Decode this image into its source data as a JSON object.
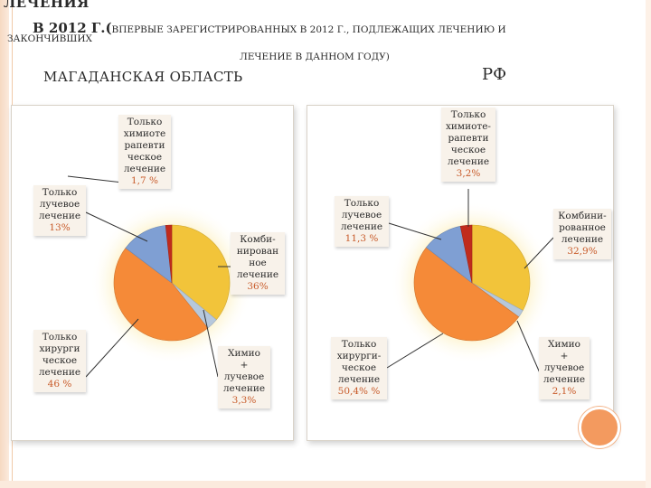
{
  "title": {
    "top": "ЛЕЧЕНИЯ",
    "year_prefix": "В 2012 Г.(",
    "line2_rest": "ВПЕРВЫЕ ЗАРЕГИСТРИРОВАННЫХ В 2012 Г., ПОДЛЕЖАЩИХ ЛЕЧЕНИЮ И",
    "line3": "ЗАКОНЧИВШИХ",
    "line4": "ЛЕЧЕНИЕ В ДАННОМ ГОДУ)"
  },
  "regions": {
    "left": "МАГАДАНСКАЯ ОБЛАСТЬ",
    "right": "РФ"
  },
  "colors": {
    "combined": "#f2c43a",
    "surgery": "#f58a38",
    "chemo_radiation": "#b6c8dc",
    "radiation": "#7f9fd3",
    "chemo": "#c02b1c"
  },
  "chart_data": [
    {
      "type": "pie",
      "title": "МАГАДАНСКАЯ ОБЛАСТЬ",
      "slices": [
        {
          "key": "combined",
          "label": [
            "Комби-",
            "нирован",
            "ное",
            "лечение"
          ],
          "value": 36,
          "value_label": "36%"
        },
        {
          "key": "chemo_radiation",
          "label": [
            "Химио",
            "+",
            "лучевое",
            "лечение"
          ],
          "value": 3.3,
          "value_label": "3,3%"
        },
        {
          "key": "surgery",
          "label": [
            "Только",
            "хирурги",
            "ческое",
            "лечение"
          ],
          "value": 46,
          "value_label": "46 %"
        },
        {
          "key": "radiation",
          "label": [
            "Только",
            "лучевое",
            "лечение"
          ],
          "value": 13,
          "value_label": "13%"
        },
        {
          "key": "chemo",
          "label": [
            "Только",
            "химиоте",
            "рапевти",
            "ческое",
            "лечение"
          ],
          "value": 1.7,
          "value_label": "1,7 %"
        }
      ]
    },
    {
      "type": "pie",
      "title": "РФ",
      "slices": [
        {
          "key": "combined",
          "label": [
            "Комбини-",
            "рованное",
            "лечение"
          ],
          "value": 32.9,
          "value_label": "32,9%"
        },
        {
          "key": "chemo_radiation",
          "label": [
            "Химио",
            "+",
            "лучевое",
            "лечение"
          ],
          "value": 2.1,
          "value_label": "2,1%"
        },
        {
          "key": "surgery",
          "label": [
            "Только",
            "хирурги-",
            "ческое",
            "лечение"
          ],
          "value": 50.4,
          "value_label": "50,4% %"
        },
        {
          "key": "radiation",
          "label": [
            "Только",
            "лучевое",
            "лечение"
          ],
          "value": 11.3,
          "value_label": "11,3 %"
        },
        {
          "key": "chemo",
          "label": [
            "Только",
            "химиоте-",
            "рапевти",
            "ческое",
            "лечение"
          ],
          "value": 3.2,
          "value_label": "3,2%"
        }
      ]
    }
  ]
}
